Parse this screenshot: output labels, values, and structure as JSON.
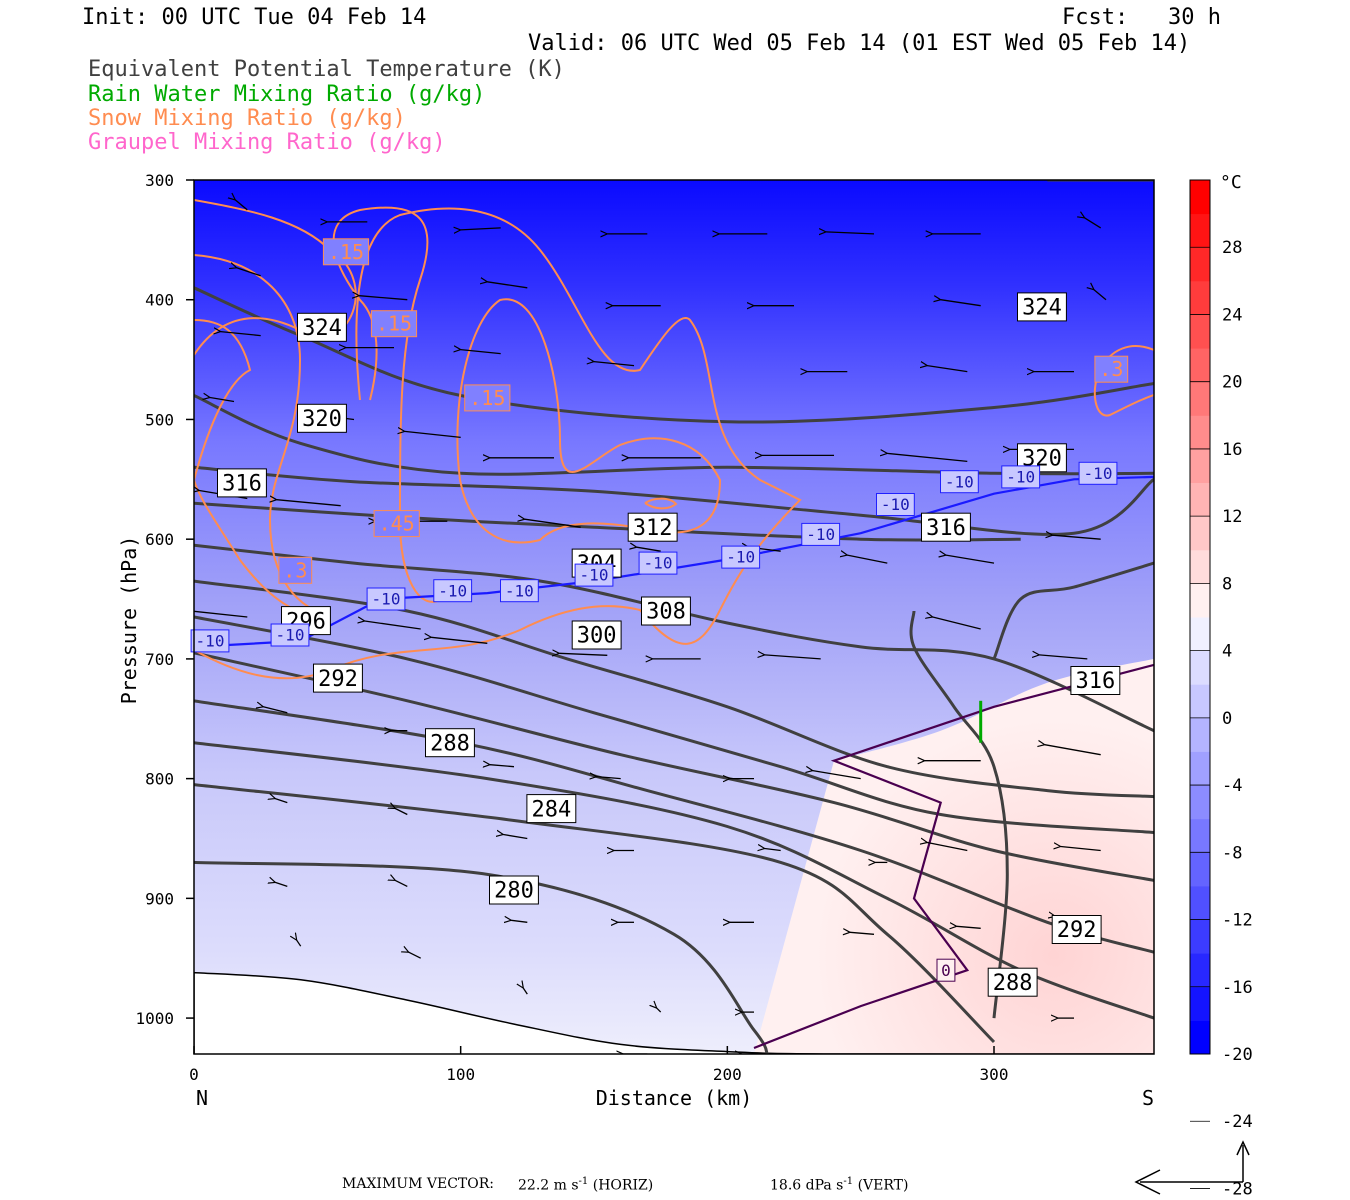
{
  "header": {
    "init": "Init: 00 UTC Tue 04 Feb 14",
    "fcst": "Fcst:   30 h",
    "valid": "Valid: 06 UTC Wed 05 Feb 14 (01 EST Wed 05 Feb 14)"
  },
  "legend": [
    {
      "label": "Equivalent Potential Temperature (K)",
      "color": "#404040"
    },
    {
      "label": "Rain Water Mixing Ratio (g/kg)",
      "color": "#00aa00"
    },
    {
      "label": "Snow Mixing Ratio (g/kg)",
      "color": "#ff8c50"
    },
    {
      "label": "Graupel Mixing Ratio (g/kg)",
      "color": "#ff66cc"
    }
  ],
  "footer": {
    "max_vector_label": "MAXIMUM VECTOR:",
    "horiz_value": "22.2 m s",
    "horiz_unit": "(HORIZ)",
    "vert_value": "18.6 dPa s",
    "vert_unit": "(VERT)",
    "exponent": "-1"
  },
  "chart_data": {
    "type": "cross-section",
    "xlabel": "Distance (km)",
    "ylabel": "Pressure (hPa)",
    "xlim": [
      0,
      360
    ],
    "ylim": [
      1030,
      300
    ],
    "x_ticks": [
      "0",
      "100",
      "200",
      "300"
    ],
    "x_tick_values": [
      0,
      100,
      200,
      300
    ],
    "x_end_labels": {
      "left": "N",
      "right": "S"
    },
    "y_ticks": [
      "300",
      "400",
      "500",
      "600",
      "700",
      "800",
      "900",
      "1000"
    ],
    "y_tick_values": [
      300,
      400,
      500,
      600,
      700,
      800,
      900,
      1000
    ],
    "colorbar": {
      "unit": "°C",
      "tick_labels": [
        "28",
        "24",
        "20",
        "16",
        "12",
        "8",
        "4",
        "0",
        "-4",
        "-8",
        "-12",
        "-16",
        "-20",
        "-24",
        "-28"
      ],
      "colors": [
        "#0000ff",
        "#1414ff",
        "#2828ff",
        "#3c3cff",
        "#5050ff",
        "#6464ff",
        "#7878ff",
        "#8c8cff",
        "#a0a0ff",
        "#b4b4ff",
        "#c8c8ff",
        "#dcdcff",
        "#f0f0ff",
        "#fff0f0",
        "#ffdcdc",
        "#ffc8c8",
        "#ffb4b4",
        "#ffa0a0",
        "#ff8c8c",
        "#ff7878",
        "#ff6464",
        "#ff5050",
        "#ff3c3c",
        "#ff2828",
        "#ff1414",
        "#ff0000"
      ]
    },
    "theta_e_labels": [
      "324",
      "324",
      "320",
      "320",
      "316",
      "316",
      "316",
      "312",
      "308",
      "304",
      "300",
      "296",
      "292",
      "292",
      "288",
      "288",
      "284",
      "280"
    ],
    "theta_e_lines": [
      {
        "value": 324,
        "points": [
          [
            0,
            390
          ],
          [
            40,
            430
          ],
          [
            100,
            480
          ],
          [
            200,
            502
          ],
          [
            300,
            490
          ],
          [
            360,
            470
          ]
        ]
      },
      {
        "value": 320,
        "points": [
          [
            0,
            480
          ],
          [
            40,
            520
          ],
          [
            100,
            545
          ],
          [
            200,
            540
          ],
          [
            300,
            545
          ],
          [
            360,
            545
          ]
        ]
      },
      {
        "value": 316,
        "points": [
          [
            0,
            540
          ],
          [
            60,
            552
          ],
          [
            150,
            560
          ],
          [
            250,
            580
          ],
          [
            330,
            595
          ],
          [
            360,
            550
          ]
        ]
      },
      {
        "value": 312,
        "points": [
          [
            0,
            570
          ],
          [
            80,
            582
          ],
          [
            150,
            590
          ],
          [
            250,
            600
          ],
          [
            310,
            600
          ]
        ]
      },
      {
        "value": 308,
        "points": [
          [
            0,
            605
          ],
          [
            60,
            620
          ],
          [
            130,
            635
          ],
          [
            200,
            670
          ],
          [
            250,
            690
          ],
          [
            300,
            700
          ],
          [
            360,
            760
          ]
        ]
      },
      {
        "value": 304,
        "points": [
          [
            0,
            635
          ],
          [
            80,
            660
          ],
          [
            140,
            700
          ],
          [
            200,
            740
          ],
          [
            260,
            790
          ],
          [
            320,
            810
          ],
          [
            360,
            815
          ]
        ]
      },
      {
        "value": 300,
        "points": [
          [
            0,
            665
          ],
          [
            80,
            700
          ],
          [
            150,
            745
          ],
          [
            220,
            790
          ],
          [
            280,
            830
          ],
          [
            360,
            845
          ]
        ]
      },
      {
        "value": 296,
        "points": [
          [
            0,
            695
          ],
          [
            80,
            735
          ],
          [
            160,
            780
          ],
          [
            240,
            820
          ],
          [
            300,
            860
          ],
          [
            360,
            885
          ]
        ]
      },
      {
        "value": 292,
        "points": [
          [
            0,
            735
          ],
          [
            100,
            770
          ],
          [
            170,
            810
          ],
          [
            250,
            860
          ],
          [
            320,
            920
          ],
          [
            360,
            945
          ]
        ]
      },
      {
        "value": 288,
        "points": [
          [
            0,
            770
          ],
          [
            110,
            800
          ],
          [
            200,
            840
          ],
          [
            260,
            900
          ],
          [
            310,
            960
          ],
          [
            360,
            1000
          ]
        ]
      },
      {
        "value": 284,
        "points": [
          [
            0,
            805
          ],
          [
            120,
            835
          ],
          [
            220,
            870
          ],
          [
            260,
            930
          ],
          [
            300,
            1020
          ]
        ]
      },
      {
        "value": 280,
        "points": [
          [
            0,
            870
          ],
          [
            110,
            880
          ],
          [
            180,
            930
          ],
          [
            210,
            1010
          ],
          [
            215,
            1030
          ]
        ]
      }
    ],
    "temp_contour_labels": [
      "-10",
      "-10",
      "-10",
      "-10",
      "-10",
      "-10",
      "-10",
      "-10",
      "-10",
      "-10",
      "-10",
      "-10",
      "-10",
      "0"
    ],
    "minus10_isotherm": [
      [
        0,
        690
      ],
      [
        40,
        685
      ],
      [
        70,
        650
      ],
      [
        110,
        645
      ],
      [
        150,
        635
      ],
      [
        200,
        617
      ],
      [
        250,
        595
      ],
      [
        300,
        562
      ],
      [
        330,
        550
      ],
      [
        360,
        548
      ]
    ],
    "zero_isotherm": [
      [
        210,
        1025
      ],
      [
        250,
        990
      ],
      [
        290,
        960
      ],
      [
        270,
        900
      ],
      [
        280,
        820
      ],
      [
        240,
        785
      ],
      [
        300,
        740
      ],
      [
        360,
        705
      ]
    ],
    "snow_labels": [
      ".15",
      ".15",
      ".15",
      ".45",
      ".3",
      ".3"
    ],
    "rain_segment": [
      [
        295,
        735
      ],
      [
        295,
        770
      ]
    ]
  }
}
